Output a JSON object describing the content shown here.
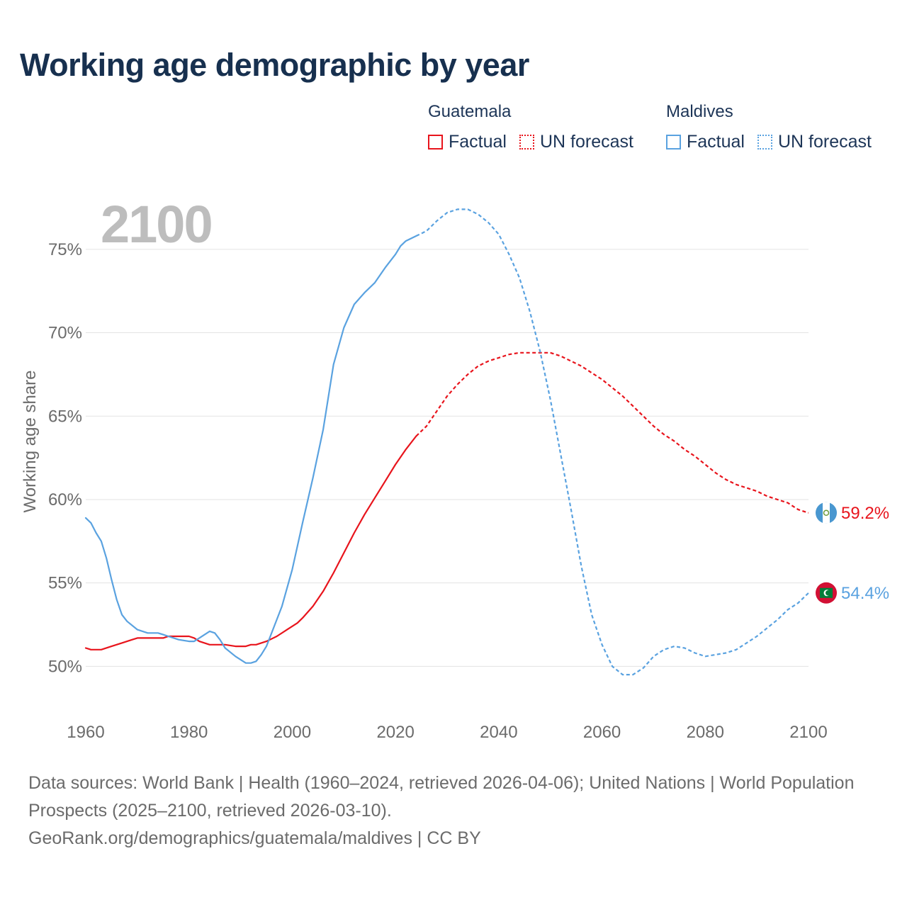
{
  "title": "Working age demographic by year",
  "year_watermark": "2100",
  "legend": {
    "groups": [
      {
        "name": "Guatemala",
        "factual_label": "Factual",
        "forecast_label": "UN forecast",
        "color": "#e8141c"
      },
      {
        "name": "Maldives",
        "factual_label": "Factual",
        "forecast_label": "UN forecast",
        "color": "#5aa2e0"
      }
    ]
  },
  "footer": {
    "sources": "Data sources: World Bank | Health (1960–2024, retrieved 2026-04-06); United Nations | World Population Prospects (2025–2100, retrieved 2026-03-10).",
    "link": "GeoRank.org/demographics/guatemala/maldives | CC BY"
  },
  "chart_data": {
    "type": "line",
    "title": "Working age demographic by year",
    "xlabel": "",
    "ylabel": "Working age share",
    "xlim": [
      1960,
      2100
    ],
    "ylim": [
      47,
      77.5
    ],
    "x_ticks": [
      1960,
      1980,
      2000,
      2020,
      2040,
      2060,
      2080,
      2100
    ],
    "y_ticks": [
      50,
      55,
      60,
      65,
      70,
      75
    ],
    "y_tick_labels": [
      "50%",
      "55%",
      "60%",
      "65%",
      "70%",
      "75%"
    ],
    "grid": "horizontal",
    "factual_end_year": 2024,
    "series": [
      {
        "name": "Guatemala",
        "color": "#e8141c",
        "end_label": "59.2%",
        "flag": "guatemala-flag",
        "points": [
          [
            1960,
            51.1
          ],
          [
            1961,
            51.0
          ],
          [
            1963,
            51.0
          ],
          [
            1965,
            51.2
          ],
          [
            1967,
            51.4
          ],
          [
            1969,
            51.6
          ],
          [
            1970,
            51.7
          ],
          [
            1972,
            51.7
          ],
          [
            1975,
            51.7
          ],
          [
            1976,
            51.8
          ],
          [
            1980,
            51.8
          ],
          [
            1981,
            51.7
          ],
          [
            1982,
            51.5
          ],
          [
            1984,
            51.3
          ],
          [
            1987,
            51.3
          ],
          [
            1989,
            51.2
          ],
          [
            1991,
            51.2
          ],
          [
            1992,
            51.3
          ],
          [
            1993,
            51.3
          ],
          [
            1995,
            51.5
          ],
          [
            1997,
            51.8
          ],
          [
            1999,
            52.2
          ],
          [
            2001,
            52.6
          ],
          [
            2002,
            52.9
          ],
          [
            2004,
            53.6
          ],
          [
            2006,
            54.5
          ],
          [
            2008,
            55.6
          ],
          [
            2010,
            56.8
          ],
          [
            2012,
            58.0
          ],
          [
            2014,
            59.1
          ],
          [
            2016,
            60.1
          ],
          [
            2018,
            61.1
          ],
          [
            2020,
            62.1
          ],
          [
            2022,
            63.0
          ],
          [
            2024,
            63.8
          ],
          [
            2026,
            64.4
          ],
          [
            2028,
            65.3
          ],
          [
            2030,
            66.2
          ],
          [
            2032,
            66.9
          ],
          [
            2034,
            67.5
          ],
          [
            2036,
            68.0
          ],
          [
            2038,
            68.3
          ],
          [
            2040,
            68.5
          ],
          [
            2042,
            68.7
          ],
          [
            2044,
            68.8
          ],
          [
            2046,
            68.8
          ],
          [
            2048,
            68.8
          ],
          [
            2050,
            68.8
          ],
          [
            2052,
            68.6
          ],
          [
            2054,
            68.3
          ],
          [
            2056,
            68.0
          ],
          [
            2058,
            67.6
          ],
          [
            2060,
            67.2
          ],
          [
            2062,
            66.7
          ],
          [
            2064,
            66.2
          ],
          [
            2066,
            65.6
          ],
          [
            2068,
            65.0
          ],
          [
            2070,
            64.4
          ],
          [
            2072,
            63.9
          ],
          [
            2074,
            63.5
          ],
          [
            2076,
            63.0
          ],
          [
            2078,
            62.6
          ],
          [
            2080,
            62.1
          ],
          [
            2082,
            61.6
          ],
          [
            2084,
            61.2
          ],
          [
            2086,
            60.9
          ],
          [
            2088,
            60.7
          ],
          [
            2090,
            60.5
          ],
          [
            2092,
            60.2
          ],
          [
            2094,
            60.0
          ],
          [
            2096,
            59.8
          ],
          [
            2098,
            59.4
          ],
          [
            2100,
            59.2
          ]
        ]
      },
      {
        "name": "Maldives",
        "color": "#5aa2e0",
        "end_label": "54.4%",
        "flag": "maldives-flag",
        "points": [
          [
            1960,
            58.9
          ],
          [
            1961,
            58.6
          ],
          [
            1962,
            58.0
          ],
          [
            1963,
            57.5
          ],
          [
            1964,
            56.5
          ],
          [
            1965,
            55.2
          ],
          [
            1966,
            54.0
          ],
          [
            1967,
            53.1
          ],
          [
            1968,
            52.7
          ],
          [
            1970,
            52.2
          ],
          [
            1972,
            52.0
          ],
          [
            1973,
            52.0
          ],
          [
            1974,
            52.0
          ],
          [
            1975,
            51.9
          ],
          [
            1976,
            51.8
          ],
          [
            1978,
            51.6
          ],
          [
            1980,
            51.5
          ],
          [
            1981,
            51.5
          ],
          [
            1982,
            51.7
          ],
          [
            1984,
            52.1
          ],
          [
            1985,
            52.0
          ],
          [
            1986,
            51.6
          ],
          [
            1987,
            51.1
          ],
          [
            1989,
            50.6
          ],
          [
            1991,
            50.2
          ],
          [
            1992,
            50.2
          ],
          [
            1993,
            50.3
          ],
          [
            1994,
            50.7
          ],
          [
            1995,
            51.2
          ],
          [
            1996,
            52.0
          ],
          [
            1997,
            52.8
          ],
          [
            1998,
            53.6
          ],
          [
            2000,
            55.8
          ],
          [
            2002,
            58.6
          ],
          [
            2004,
            61.3
          ],
          [
            2006,
            64.2
          ],
          [
            2008,
            68.1
          ],
          [
            2010,
            70.3
          ],
          [
            2012,
            71.7
          ],
          [
            2014,
            72.4
          ],
          [
            2016,
            73.0
          ],
          [
            2018,
            73.9
          ],
          [
            2020,
            74.7
          ],
          [
            2021,
            75.2
          ],
          [
            2022,
            75.5
          ],
          [
            2024,
            75.8
          ],
          [
            2026,
            76.1
          ],
          [
            2028,
            76.7
          ],
          [
            2030,
            77.2
          ],
          [
            2032,
            77.4
          ],
          [
            2034,
            77.4
          ],
          [
            2036,
            77.1
          ],
          [
            2038,
            76.6
          ],
          [
            2040,
            75.9
          ],
          [
            2042,
            74.7
          ],
          [
            2044,
            73.3
          ],
          [
            2046,
            71.3
          ],
          [
            2048,
            68.9
          ],
          [
            2050,
            66.0
          ],
          [
            2052,
            62.7
          ],
          [
            2054,
            59.4
          ],
          [
            2056,
            56.0
          ],
          [
            2058,
            53.1
          ],
          [
            2060,
            51.3
          ],
          [
            2062,
            50.0
          ],
          [
            2064,
            49.5
          ],
          [
            2066,
            49.5
          ],
          [
            2068,
            49.9
          ],
          [
            2070,
            50.6
          ],
          [
            2072,
            51.0
          ],
          [
            2074,
            51.2
          ],
          [
            2076,
            51.1
          ],
          [
            2078,
            50.8
          ],
          [
            2080,
            50.6
          ],
          [
            2082,
            50.7
          ],
          [
            2084,
            50.8
          ],
          [
            2086,
            51.0
          ],
          [
            2088,
            51.4
          ],
          [
            2090,
            51.8
          ],
          [
            2092,
            52.3
          ],
          [
            2094,
            52.8
          ],
          [
            2096,
            53.4
          ],
          [
            2098,
            53.8
          ],
          [
            2100,
            54.4
          ]
        ]
      }
    ]
  }
}
